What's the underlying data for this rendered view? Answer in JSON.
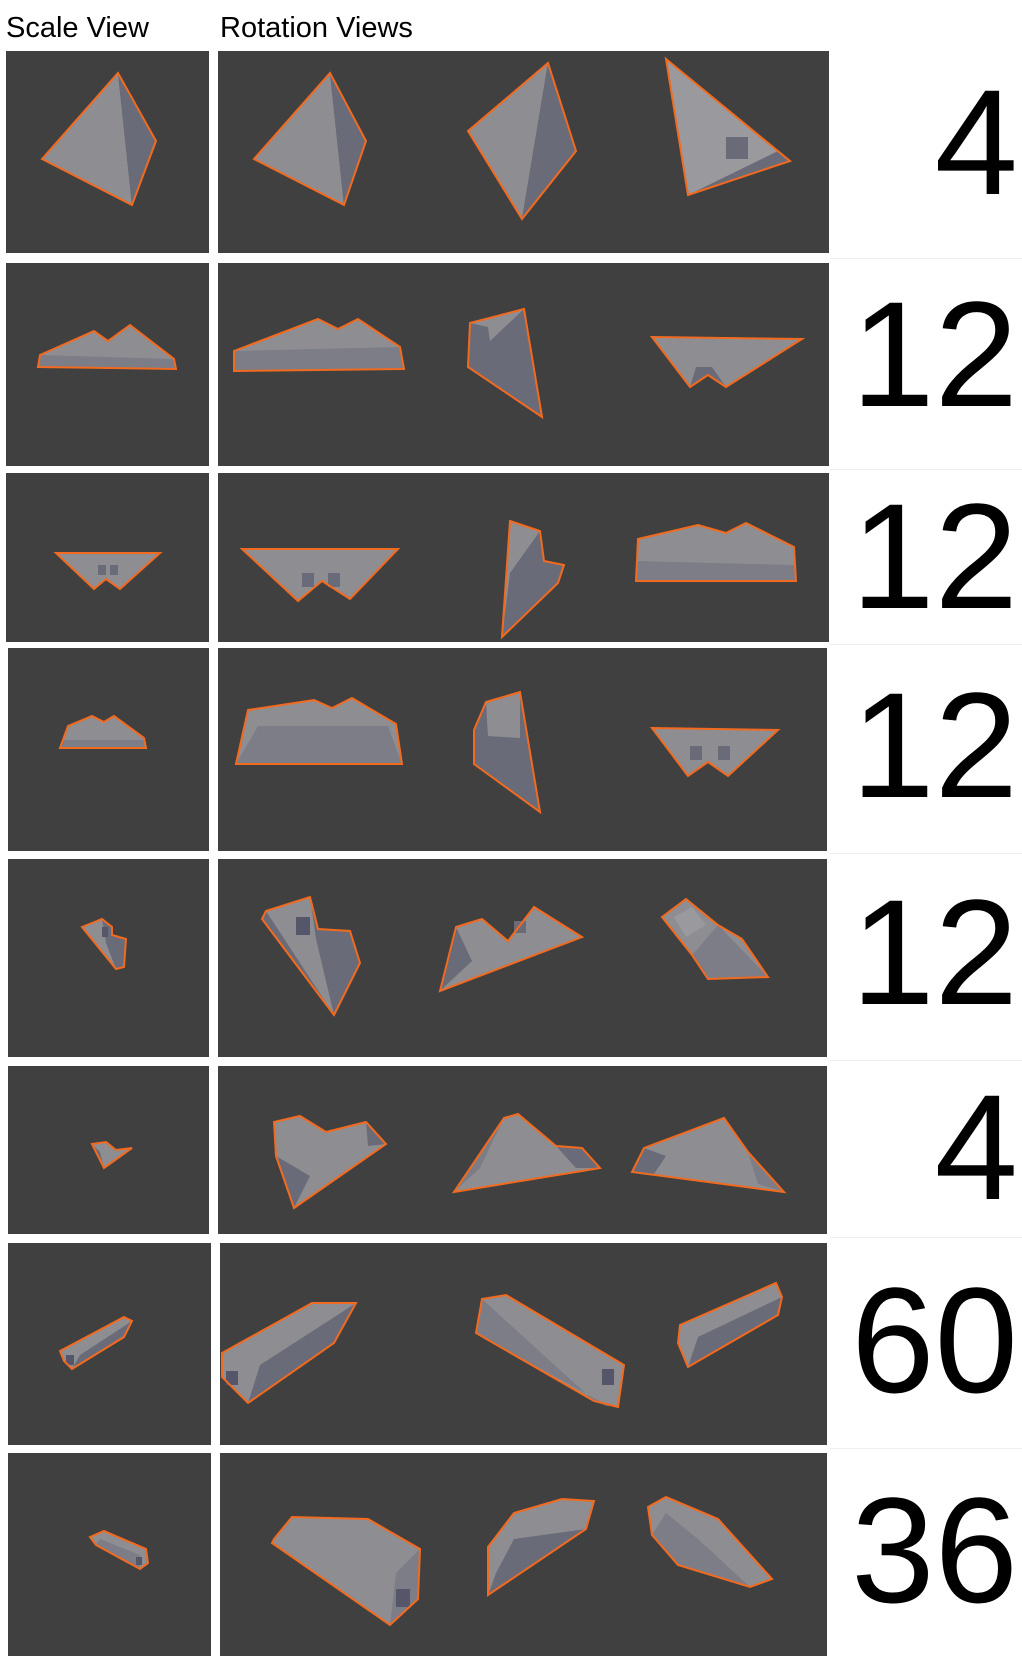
{
  "headers": {
    "scale_view": "Scale View",
    "rotation_views": "Rotation Views"
  },
  "colors": {
    "viewport_bg": "#404040",
    "face_light": "#8e8e92",
    "face_dark": "#6a6b78",
    "face_mid": "#7c7d86",
    "outline": "#f26a1f"
  },
  "rows": [
    {
      "count": "4"
    },
    {
      "count": "12"
    },
    {
      "count": "12"
    },
    {
      "count": "12"
    },
    {
      "count": "12"
    },
    {
      "count": "4"
    },
    {
      "count": "60"
    },
    {
      "count": "36"
    }
  ]
}
